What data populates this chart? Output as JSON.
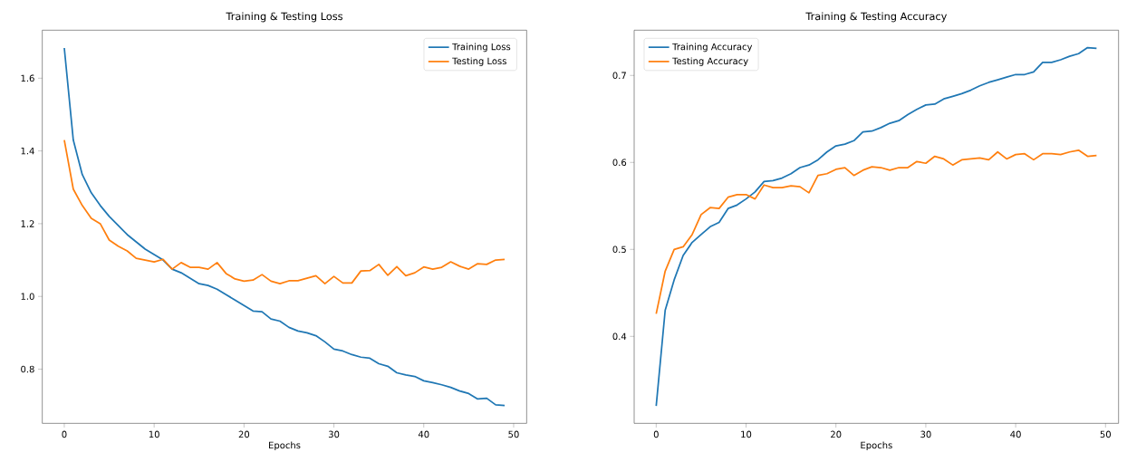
{
  "chart_data": [
    {
      "type": "line",
      "title": "Training & Testing Loss",
      "xlabel": "Epochs",
      "x": [
        0,
        1,
        2,
        3,
        4,
        5,
        6,
        7,
        8,
        9,
        10,
        11,
        12,
        13,
        14,
        15,
        16,
        17,
        18,
        19,
        20,
        21,
        22,
        23,
        24,
        25,
        26,
        27,
        28,
        29,
        30,
        31,
        32,
        33,
        34,
        35,
        36,
        37,
        38,
        39,
        40,
        41,
        42,
        43,
        44,
        45,
        46,
        47,
        48,
        49
      ],
      "series": [
        {
          "name": "Training Loss",
          "color": "#1f77b4",
          "values": [
            1.683,
            1.43,
            1.335,
            1.285,
            1.25,
            1.22,
            1.195,
            1.17,
            1.15,
            1.13,
            1.115,
            1.1,
            1.075,
            1.065,
            1.05,
            1.035,
            1.03,
            1.02,
            1.005,
            0.99,
            0.975,
            0.96,
            0.958,
            0.938,
            0.932,
            0.915,
            0.905,
            0.9,
            0.892,
            0.875,
            0.855,
            0.85,
            0.84,
            0.833,
            0.83,
            0.815,
            0.808,
            0.79,
            0.784,
            0.78,
            0.768,
            0.763,
            0.757,
            0.75,
            0.74,
            0.733,
            0.718,
            0.72,
            0.702,
            0.7
          ]
        },
        {
          "name": "Testing Loss",
          "color": "#ff7f0e",
          "values": [
            1.43,
            1.295,
            1.25,
            1.215,
            1.2,
            1.155,
            1.138,
            1.125,
            1.105,
            1.1,
            1.095,
            1.102,
            1.075,
            1.093,
            1.08,
            1.08,
            1.075,
            1.093,
            1.063,
            1.048,
            1.042,
            1.045,
            1.06,
            1.042,
            1.035,
            1.043,
            1.043,
            1.05,
            1.057,
            1.035,
            1.055,
            1.037,
            1.037,
            1.07,
            1.071,
            1.088,
            1.058,
            1.082,
            1.057,
            1.065,
            1.081,
            1.075,
            1.08,
            1.095,
            1.083,
            1.075,
            1.09,
            1.088,
            1.1,
            1.102
          ]
        }
      ],
      "xlim": [
        -2.45,
        51.45
      ],
      "ylim": [
        0.651,
        1.732
      ],
      "xticks": [
        0,
        10,
        20,
        30,
        40,
        50
      ],
      "yticks": [
        0.8,
        {
          "value": 1.0,
          "label": "1.0"
        },
        1.2,
        1.4,
        1.6
      ],
      "legend": "top right",
      "grid": false,
      "marker": "none",
      "line_style": "solid"
    },
    {
      "type": "line",
      "title": "Training & Testing Accuracy",
      "xlabel": "Epochs",
      "x": [
        0,
        1,
        2,
        3,
        4,
        5,
        6,
        7,
        8,
        9,
        10,
        11,
        12,
        13,
        14,
        15,
        16,
        17,
        18,
        19,
        20,
        21,
        22,
        23,
        24,
        25,
        26,
        27,
        28,
        29,
        30,
        31,
        32,
        33,
        34,
        35,
        36,
        37,
        38,
        39,
        40,
        41,
        42,
        43,
        44,
        45,
        46,
        47,
        48,
        49
      ],
      "series": [
        {
          "name": "Training Accuracy",
          "color": "#1f77b4",
          "values": [
            0.32,
            0.43,
            0.465,
            0.493,
            0.508,
            0.517,
            0.526,
            0.531,
            0.547,
            0.551,
            0.558,
            0.566,
            0.578,
            0.579,
            0.582,
            0.587,
            0.594,
            0.597,
            0.603,
            0.612,
            0.619,
            0.621,
            0.625,
            0.635,
            0.636,
            0.64,
            0.645,
            0.648,
            0.655,
            0.661,
            0.666,
            0.667,
            0.673,
            0.676,
            0.679,
            0.683,
            0.688,
            0.692,
            0.695,
            0.698,
            0.701,
            0.701,
            0.704,
            0.715,
            0.715,
            0.718,
            0.722,
            0.725,
            0.732,
            0.731
          ]
        },
        {
          "name": "Testing Accuracy",
          "color": "#ff7f0e",
          "values": [
            0.426,
            0.475,
            0.5,
            0.503,
            0.517,
            0.54,
            0.548,
            0.547,
            0.56,
            0.563,
            0.563,
            0.558,
            0.574,
            0.571,
            0.571,
            0.573,
            0.572,
            0.565,
            0.585,
            0.587,
            0.592,
            0.594,
            0.585,
            0.591,
            0.595,
            0.594,
            0.591,
            0.594,
            0.594,
            0.601,
            0.599,
            0.607,
            0.604,
            0.597,
            0.603,
            0.604,
            0.605,
            0.603,
            0.612,
            0.604,
            0.609,
            0.61,
            0.603,
            0.61,
            0.61,
            0.609,
            0.612,
            0.614,
            0.607,
            0.608
          ]
        }
      ],
      "xlim": [
        -2.45,
        51.45
      ],
      "ylim": [
        0.3,
        0.752
      ],
      "xticks": [
        0,
        10,
        20,
        30,
        40,
        50
      ],
      "yticks": [
        0.4,
        0.5,
        0.6,
        0.7
      ],
      "legend": "top left",
      "grid": false,
      "marker": "none",
      "line_style": "solid"
    }
  ]
}
